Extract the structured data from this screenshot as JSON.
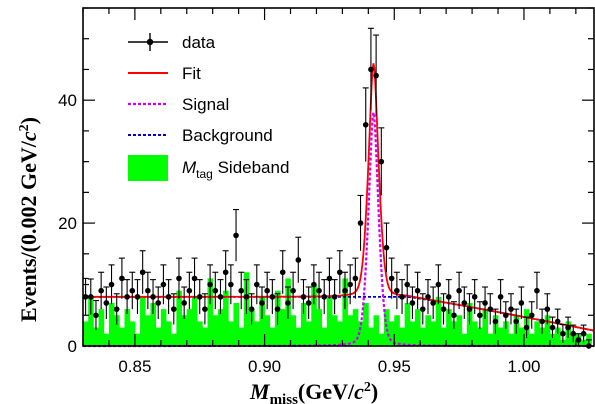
{
  "chart_data": {
    "type": "scatter",
    "x_range": [
      0.83,
      1.027
    ],
    "y_range": [
      0,
      55
    ],
    "x_ticks": [
      0.85,
      0.9,
      0.95,
      1.0
    ],
    "x_tick_labels": [
      "0.85",
      "0.90",
      "0.95",
      "1.00"
    ],
    "y_ticks": [
      0,
      20,
      40
    ],
    "y_tick_labels": [
      "0",
      "20",
      "40"
    ],
    "xlabel": {
      "main": "M",
      "sub": "miss",
      "unit_prefix": "(GeV/",
      "unit_c": "c",
      "unit_sup": "2",
      "unit_suffix": ")"
    },
    "ylabel": {
      "prefix": "Events/(0.002 GeV/",
      "c": "c",
      "sup": "2",
      "suffix": ")"
    },
    "legend": {
      "placement": "top-left",
      "entries": [
        {
          "key": "data",
          "label": "data"
        },
        {
          "key": "fit",
          "label": "Fit"
        },
        {
          "key": "signal",
          "label": "Signal"
        },
        {
          "key": "background",
          "label": "Background"
        },
        {
          "key": "sideband",
          "label_main": "M",
          "label_sub": "tag",
          "label_rest": " Sideband"
        }
      ]
    },
    "colors": {
      "data": "#000000",
      "fit": "#ff0000",
      "signal": "#cc00ff",
      "background": "#0000cc",
      "sideband": "#00ff00"
    },
    "curve_params": {
      "bg_level": 8.0,
      "bg_flat_until": 0.955,
      "bg_end_value": 2.5,
      "signal_mean": 0.942,
      "signal_peak": 38,
      "signal_sigma": 0.0022,
      "signal_gamma": 0.0016
    },
    "data_points": [
      {
        "x": 0.831,
        "y": 8,
        "e": 3.0
      },
      {
        "x": 0.833,
        "y": 8,
        "e": 2.9
      },
      {
        "x": 0.835,
        "y": 5,
        "e": 2.4
      },
      {
        "x": 0.837,
        "y": 9,
        "e": 3.0
      },
      {
        "x": 0.839,
        "y": 7,
        "e": 2.6
      },
      {
        "x": 0.841,
        "y": 10,
        "e": 3.2
      },
      {
        "x": 0.843,
        "y": 6,
        "e": 2.5
      },
      {
        "x": 0.845,
        "y": 11,
        "e": 3.3
      },
      {
        "x": 0.847,
        "y": 8,
        "e": 2.8
      },
      {
        "x": 0.849,
        "y": 9,
        "e": 3.0
      },
      {
        "x": 0.851,
        "y": 8,
        "e": 2.8
      },
      {
        "x": 0.853,
        "y": 12,
        "e": 3.5
      },
      {
        "x": 0.855,
        "y": 9,
        "e": 3.0
      },
      {
        "x": 0.857,
        "y": 8,
        "e": 2.8
      },
      {
        "x": 0.859,
        "y": 7,
        "e": 2.6
      },
      {
        "x": 0.861,
        "y": 10,
        "e": 3.2
      },
      {
        "x": 0.863,
        "y": 8,
        "e": 2.8
      },
      {
        "x": 0.865,
        "y": 6,
        "e": 2.5
      },
      {
        "x": 0.867,
        "y": 11,
        "e": 3.3
      },
      {
        "x": 0.869,
        "y": 7,
        "e": 2.6
      },
      {
        "x": 0.871,
        "y": 9,
        "e": 3.0
      },
      {
        "x": 0.873,
        "y": 11,
        "e": 3.3
      },
      {
        "x": 0.875,
        "y": 8,
        "e": 2.8
      },
      {
        "x": 0.877,
        "y": 6,
        "e": 2.5
      },
      {
        "x": 0.879,
        "y": 10,
        "e": 3.2
      },
      {
        "x": 0.881,
        "y": 9,
        "e": 3.0
      },
      {
        "x": 0.883,
        "y": 8,
        "e": 2.8
      },
      {
        "x": 0.885,
        "y": 12,
        "e": 3.5
      },
      {
        "x": 0.887,
        "y": 10,
        "e": 3.2
      },
      {
        "x": 0.889,
        "y": 18,
        "e": 4.2
      },
      {
        "x": 0.891,
        "y": 9,
        "e": 3.0
      },
      {
        "x": 0.893,
        "y": 8,
        "e": 2.8
      },
      {
        "x": 0.895,
        "y": 6,
        "e": 2.5
      },
      {
        "x": 0.897,
        "y": 10,
        "e": 3.2
      },
      {
        "x": 0.899,
        "y": 7,
        "e": 2.6
      },
      {
        "x": 0.901,
        "y": 9,
        "e": 3.0
      },
      {
        "x": 0.903,
        "y": 8,
        "e": 2.8
      },
      {
        "x": 0.905,
        "y": 6,
        "e": 2.5
      },
      {
        "x": 0.907,
        "y": 12,
        "e": 3.5
      },
      {
        "x": 0.909,
        "y": 7,
        "e": 2.6
      },
      {
        "x": 0.911,
        "y": 9,
        "e": 3.0
      },
      {
        "x": 0.913,
        "y": 14,
        "e": 3.7
      },
      {
        "x": 0.915,
        "y": 8,
        "e": 2.8
      },
      {
        "x": 0.917,
        "y": 7,
        "e": 2.6
      },
      {
        "x": 0.919,
        "y": 10,
        "e": 3.2
      },
      {
        "x": 0.921,
        "y": 9,
        "e": 3.0
      },
      {
        "x": 0.923,
        "y": 8,
        "e": 2.8
      },
      {
        "x": 0.925,
        "y": 11,
        "e": 3.3
      },
      {
        "x": 0.927,
        "y": 8,
        "e": 2.8
      },
      {
        "x": 0.929,
        "y": 12,
        "e": 3.5
      },
      {
        "x": 0.931,
        "y": 9,
        "e": 3.0
      },
      {
        "x": 0.933,
        "y": 10,
        "e": 3.2
      },
      {
        "x": 0.935,
        "y": 11,
        "e": 3.3
      },
      {
        "x": 0.937,
        "y": 20,
        "e": 4.5
      },
      {
        "x": 0.939,
        "y": 36,
        "e": 6.0
      },
      {
        "x": 0.941,
        "y": 45,
        "e": 6.7
      },
      {
        "x": 0.943,
        "y": 44,
        "e": 6.6
      },
      {
        "x": 0.945,
        "y": 30,
        "e": 5.5
      },
      {
        "x": 0.947,
        "y": 16,
        "e": 4.0
      },
      {
        "x": 0.949,
        "y": 11,
        "e": 3.3
      },
      {
        "x": 0.951,
        "y": 9,
        "e": 3.0
      },
      {
        "x": 0.953,
        "y": 8,
        "e": 2.8
      },
      {
        "x": 0.955,
        "y": 10,
        "e": 3.2
      },
      {
        "x": 0.957,
        "y": 7,
        "e": 2.6
      },
      {
        "x": 0.959,
        "y": 9,
        "e": 3.0
      },
      {
        "x": 0.961,
        "y": 6,
        "e": 2.5
      },
      {
        "x": 0.963,
        "y": 8,
        "e": 2.8
      },
      {
        "x": 0.965,
        "y": 7,
        "e": 2.6
      },
      {
        "x": 0.967,
        "y": 10,
        "e": 3.2
      },
      {
        "x": 0.969,
        "y": 6,
        "e": 2.5
      },
      {
        "x": 0.971,
        "y": 8,
        "e": 2.8
      },
      {
        "x": 0.973,
        "y": 5,
        "e": 2.2
      },
      {
        "x": 0.975,
        "y": 9,
        "e": 3.0
      },
      {
        "x": 0.977,
        "y": 7,
        "e": 2.6
      },
      {
        "x": 0.979,
        "y": 6,
        "e": 2.5
      },
      {
        "x": 0.981,
        "y": 8,
        "e": 2.8
      },
      {
        "x": 0.983,
        "y": 5,
        "e": 2.2
      },
      {
        "x": 0.985,
        "y": 7,
        "e": 2.6
      },
      {
        "x": 0.987,
        "y": 6,
        "e": 2.5
      },
      {
        "x": 0.989,
        "y": 4,
        "e": 2.0
      },
      {
        "x": 0.991,
        "y": 8,
        "e": 2.8
      },
      {
        "x": 0.993,
        "y": 5,
        "e": 2.2
      },
      {
        "x": 0.995,
        "y": 6,
        "e": 2.5
      },
      {
        "x": 0.997,
        "y": 4,
        "e": 2.0
      },
      {
        "x": 0.999,
        "y": 7,
        "e": 2.6
      },
      {
        "x": 1.001,
        "y": 3,
        "e": 1.7
      },
      {
        "x": 1.003,
        "y": 5,
        "e": 2.2
      },
      {
        "x": 1.005,
        "y": 9,
        "e": 3.0
      },
      {
        "x": 1.007,
        "y": 4,
        "e": 2.0
      },
      {
        "x": 1.009,
        "y": 6,
        "e": 2.5
      },
      {
        "x": 1.011,
        "y": 3,
        "e": 1.7
      },
      {
        "x": 1.013,
        "y": 4,
        "e": 2.0
      },
      {
        "x": 1.015,
        "y": 2,
        "e": 1.5
      },
      {
        "x": 1.017,
        "y": 3,
        "e": 1.7
      },
      {
        "x": 1.019,
        "y": 2,
        "e": 1.4
      },
      {
        "x": 1.021,
        "y": 1,
        "e": 1.0
      },
      {
        "x": 1.023,
        "y": 2,
        "e": 1.4
      },
      {
        "x": 1.025,
        "y": 0,
        "e": 1.0
      }
    ],
    "sideband_bins": {
      "x_start": 0.83,
      "bin_width": 0.002,
      "values": [
        4,
        8,
        3,
        6,
        2,
        7,
        5,
        3,
        6,
        4,
        2,
        8,
        5,
        7,
        3,
        6,
        4,
        2,
        9,
        5,
        6,
        8,
        4,
        3,
        11,
        5,
        6,
        9,
        4,
        7,
        3,
        12,
        6,
        4,
        8,
        5,
        3,
        9,
        6,
        11,
        5,
        3,
        7,
        4,
        10,
        6,
        3,
        8,
        5,
        4,
        11,
        5,
        6,
        4,
        7,
        3,
        5,
        2,
        6,
        4,
        5,
        3,
        7,
        4,
        6,
        3,
        5,
        4,
        8,
        3,
        6,
        4,
        5,
        2,
        7,
        4,
        3,
        6,
        2,
        5,
        3,
        4,
        2,
        5,
        3,
        6,
        2,
        4,
        3,
        5,
        2,
        3,
        1,
        4,
        2,
        2,
        1,
        2
      ]
    }
  }
}
